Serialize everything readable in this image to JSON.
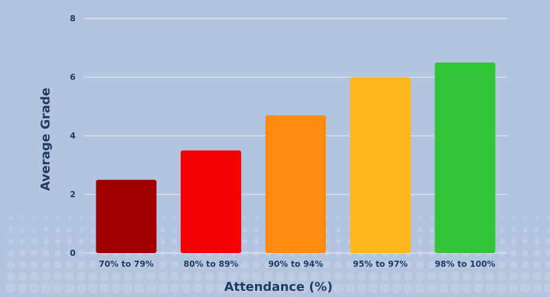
{
  "chart_data": {
    "type": "bar",
    "categories": [
      "70% to 79%",
      "80% to 89%",
      "90% to 94%",
      "95% to 97%",
      "98% to 100%"
    ],
    "values": [
      2.5,
      3.5,
      4.7,
      6.0,
      6.5
    ],
    "colors": [
      "#a00000",
      "#f50000",
      "#ff8a12",
      "#ffb61c",
      "#33c43a"
    ],
    "xlabel": "Attendance (%)",
    "ylabel": "Average Grade",
    "ylim": [
      0,
      8
    ],
    "yticks": [
      0,
      2,
      4,
      6,
      8
    ],
    "grid": true,
    "legend": "none"
  },
  "style": {
    "background": "#b3c4de",
    "grid_color": "#dfe6f1",
    "text_color": "#1f3b66",
    "pattern_color": "#c9d5e8"
  }
}
